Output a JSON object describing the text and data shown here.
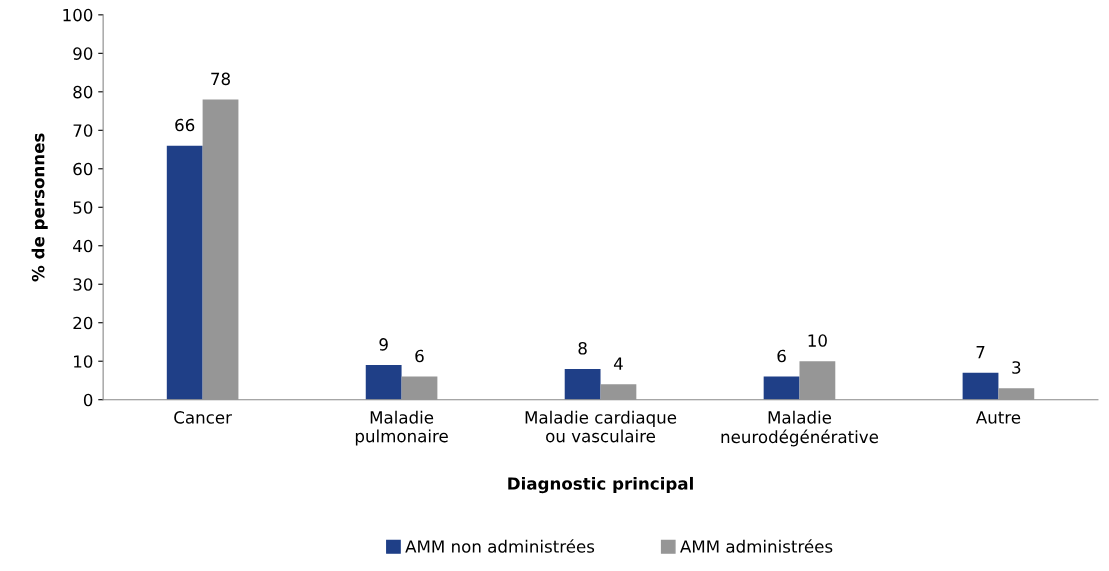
{
  "chart_data": {
    "type": "bar",
    "xlabel": "Diagnostic principal",
    "ylabel": "% de personnes",
    "categories": [
      "Cancer",
      "Maladie\npulmonaire",
      "Maladie cardiaque\nou vasculaire",
      "Maladie\nneurodégénérative",
      "Autre"
    ],
    "series": [
      {
        "name": "AMM non administrées",
        "color": "#1f3f87",
        "values": [
          66,
          9,
          8,
          6,
          7
        ]
      },
      {
        "name": "AMM administrées",
        "color": "#969696",
        "values": [
          78,
          6,
          4,
          10,
          3
        ]
      }
    ],
    "ylim": [
      0,
      100
    ],
    "yticks": [
      0,
      10,
      20,
      30,
      40,
      50,
      60,
      70,
      80,
      90,
      100
    ],
    "data_labels": true,
    "legend": "bottom",
    "grid": false
  }
}
